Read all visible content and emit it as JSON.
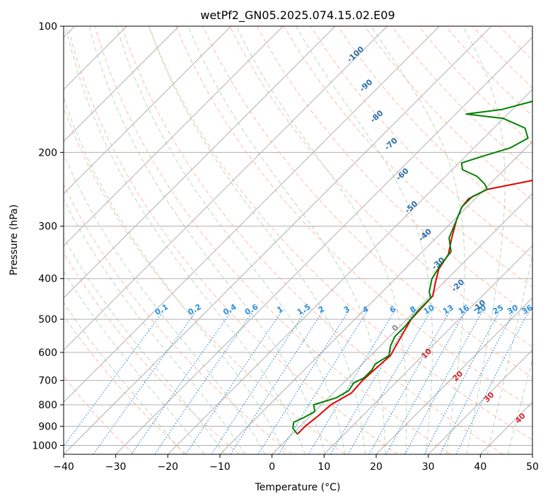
{
  "chart_data": {
    "type": "line",
    "subtype": "skew-t log-p diagram",
    "title": "wetPf2_GN05.2025.074.15.02.E09",
    "xlabel": "Temperature (°C)",
    "ylabel": "Pressure (hPa)",
    "xlim": [
      -40,
      50
    ],
    "ylim": [
      1050,
      100
    ],
    "y_scale": "log",
    "grid": true,
    "x_ticks": [
      "−40",
      "−30",
      "−20",
      "−10",
      "0",
      "10",
      "20",
      "30",
      "40",
      "50"
    ],
    "y_ticks": [
      "100",
      "200",
      "300",
      "400",
      "500",
      "600",
      "700",
      "800",
      "900",
      "1000"
    ],
    "background_lines": {
      "isotherms": "grey solid, skewed",
      "dry_adiabats": "orange-red dashed",
      "moist_adiabats": "green dashed",
      "mixing_ratio": "blue dotted"
    },
    "mixing_ratio_labels": [
      "0.1",
      "0.2",
      "0.4",
      "0.6",
      "1",
      "1.5",
      "2",
      "3",
      "4",
      "6",
      "8",
      "10",
      "13",
      "16",
      "20",
      "25",
      "30",
      "36"
    ],
    "dry_adiabat_labels": [
      "-100",
      "-90",
      "-80",
      "-70",
      "-60",
      "-50",
      "-40",
      "-30",
      "-20",
      "-10"
    ],
    "moist_adiabat_labels": [
      "0",
      "10",
      "20",
      "30",
      "40"
    ],
    "series": [
      {
        "name": "",
        "color": "#e00000",
        "points": [
          {
            "p": 940,
            "t": 1.0
          },
          {
            "p": 900,
            "t": 1.0
          },
          {
            "p": 850,
            "t": 1.5
          },
          {
            "p": 800,
            "t": 1.8
          },
          {
            "p": 750,
            "t": 3.5
          },
          {
            "p": 700,
            "t": 3.2
          },
          {
            "p": 650,
            "t": 3.5
          },
          {
            "p": 610,
            "t": 3.8
          },
          {
            "p": 580,
            "t": 3.0
          },
          {
            "p": 500,
            "t": 0.8
          },
          {
            "p": 440,
            "t": 0.5
          },
          {
            "p": 410,
            "t": -1.5
          },
          {
            "p": 380,
            "t": -3.5
          },
          {
            "p": 350,
            "t": -4.5
          },
          {
            "p": 320,
            "t": -7.0
          },
          {
            "p": 290,
            "t": -9.5
          },
          {
            "p": 270,
            "t": -11.0
          },
          {
            "p": 258,
            "t": -11.3
          },
          {
            "p": 245,
            "t": -9.5
          },
          {
            "p": 230,
            "t": -0.5
          },
          {
            "p": 215,
            "t": 4.0
          },
          {
            "p": 200,
            "t": 7.0
          },
          {
            "p": 185,
            "t": 11.0
          },
          {
            "p": 170,
            "t": 18.0
          },
          {
            "p": 158,
            "t": 21.5
          },
          {
            "p": 150,
            "t": 21.5
          },
          {
            "p": 135,
            "t": 20.0
          },
          {
            "p": 125,
            "t": 21.0
          },
          {
            "p": 115,
            "t": 24.0
          },
          {
            "p": 105,
            "t": 28.0
          },
          {
            "p": 100,
            "t": 29.5
          }
        ]
      },
      {
        "name": "",
        "color": "#008000",
        "points": [
          {
            "p": 940,
            "t": 1.0
          },
          {
            "p": 910,
            "t": -1.0
          },
          {
            "p": 880,
            "t": -2.0
          },
          {
            "p": 860,
            "t": -1.0
          },
          {
            "p": 830,
            "t": 0.0
          },
          {
            "p": 800,
            "t": -1.5
          },
          {
            "p": 770,
            "t": 1.5
          },
          {
            "p": 740,
            "t": 2.5
          },
          {
            "p": 710,
            "t": 2.0
          },
          {
            "p": 690,
            "t": 3.0
          },
          {
            "p": 660,
            "t": 3.0
          },
          {
            "p": 640,
            "t": 2.5
          },
          {
            "p": 610,
            "t": 3.5
          },
          {
            "p": 580,
            "t": 2.0
          },
          {
            "p": 550,
            "t": 1.0
          },
          {
            "p": 520,
            "t": 1.0
          },
          {
            "p": 480,
            "t": 0.5
          },
          {
            "p": 445,
            "t": 0.5
          },
          {
            "p": 430,
            "t": -1.0
          },
          {
            "p": 400,
            "t": -3.0
          },
          {
            "p": 370,
            "t": -4.0
          },
          {
            "p": 345,
            "t": -4.5
          },
          {
            "p": 320,
            "t": -7.5
          },
          {
            "p": 290,
            "t": -9.5
          },
          {
            "p": 270,
            "t": -11.0
          },
          {
            "p": 255,
            "t": -11.0
          },
          {
            "p": 245,
            "t": -9.5
          },
          {
            "p": 238,
            "t": -11.0
          },
          {
            "p": 228,
            "t": -14.0
          },
          {
            "p": 220,
            "t": -18.0
          },
          {
            "p": 212,
            "t": -19.5
          },
          {
            "p": 205,
            "t": -17.0
          },
          {
            "p": 195,
            "t": -13.0
          },
          {
            "p": 185,
            "t": -11.5
          },
          {
            "p": 175,
            "t": -14.0
          },
          {
            "p": 166,
            "t": -20.0
          },
          {
            "p": 162,
            "t": -28.0
          },
          {
            "p": 158,
            "t": -22.0
          },
          {
            "p": 150,
            "t": -17.0
          },
          {
            "p": 135,
            "t": -10.5
          },
          {
            "p": 120,
            "t": -6.0
          },
          {
            "p": 110,
            "t": -3.5
          },
          {
            "p": 100,
            "t": -0.5
          }
        ]
      }
    ]
  }
}
